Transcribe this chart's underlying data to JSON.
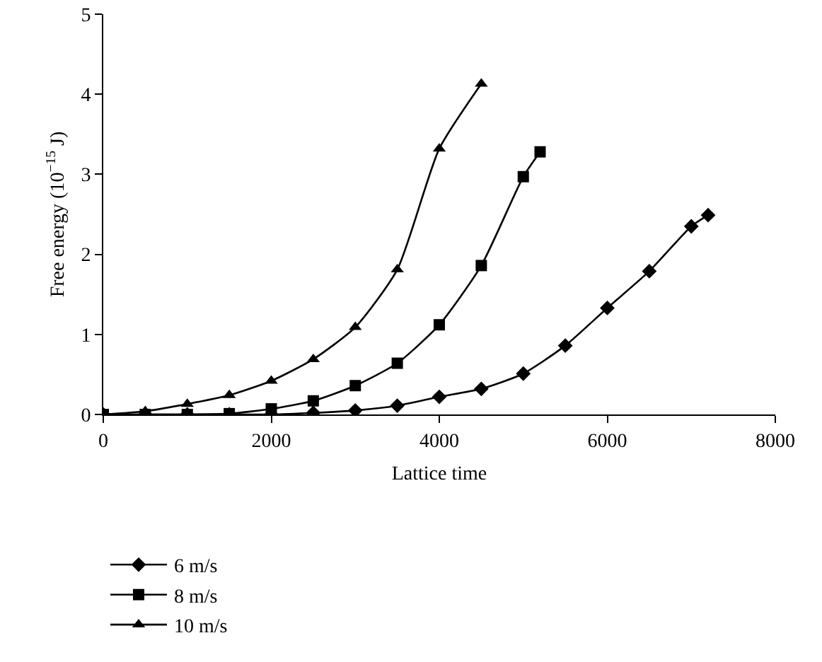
{
  "chart_data": {
    "type": "line",
    "xlabel": "Lattice time",
    "ylabel": "Free energy (10$^{−15}$ J)",
    "xlim": [
      0,
      8000
    ],
    "xticks": [
      0,
      2000,
      4000,
      6000,
      8000
    ],
    "ylim": [
      0,
      5
    ],
    "yticks": [
      0,
      1,
      2,
      3,
      4,
      5
    ],
    "grid": false,
    "legend": "bottom left",
    "line_style": "solid",
    "series": [
      {
        "name": "6 m/s",
        "color": "#000000",
        "marker": "diamond",
        "x": [
          0,
          500,
          1000,
          1500,
          2000,
          2500,
          3000,
          3500,
          4000,
          4500,
          5000,
          5500,
          6000,
          6500,
          7000,
          7200
        ],
        "values": [
          0,
          0,
          0,
          0,
          0,
          0.02,
          0.05,
          0.11,
          0.22,
          0.32,
          0.51,
          0.86,
          1.33,
          1.79,
          2.35,
          2.49
        ]
      },
      {
        "name": "8 m/s",
        "color": "#000000",
        "marker": "square",
        "x": [
          0,
          500,
          1000,
          1500,
          2000,
          2500,
          3000,
          3500,
          4000,
          4500,
          5000,
          5200
        ],
        "values": [
          0,
          0,
          0,
          0.01,
          0.07,
          0.17,
          0.36,
          0.64,
          1.12,
          1.86,
          2.97,
          3.28
        ]
      },
      {
        "name": "10 m/s",
        "color": "#000000",
        "marker": "triangle",
        "x": [
          0,
          500,
          1000,
          1500,
          2000,
          2500,
          3000,
          3500,
          4000,
          4500
        ],
        "values": [
          0,
          0.04,
          0.13,
          0.24,
          0.42,
          0.69,
          1.09,
          1.81,
          3.32,
          4.13
        ]
      }
    ]
  }
}
